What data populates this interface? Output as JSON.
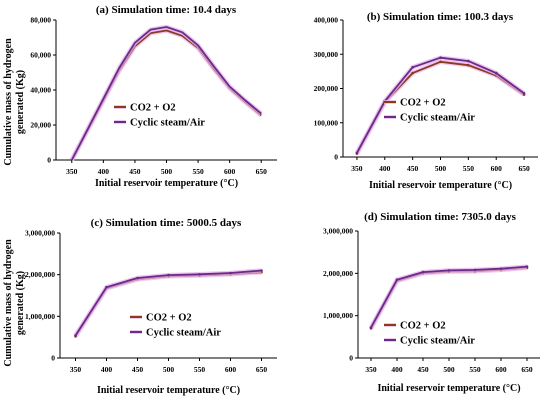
{
  "shared": {
    "ylabel_line1": "Cumulative mass of hydrogen",
    "ylabel_line2": "generated (Kg)"
  },
  "chart_data": [
    {
      "type": "line",
      "title": "(a) Simulation time: 10.4 days",
      "xlabel": "Initial reservoir temperature (°C)",
      "x": [
        350,
        375,
        400,
        425,
        450,
        475,
        500,
        525,
        550,
        575,
        600,
        625,
        650
      ],
      "xticks": [
        350,
        400,
        450,
        500,
        550,
        600,
        650
      ],
      "xlim": [
        325,
        675
      ],
      "ylim": [
        0,
        80000
      ],
      "yticks": [
        0,
        20000,
        40000,
        60000,
        80000
      ],
      "ytick_labels": [
        "0",
        "20,000",
        "40,000",
        "60,000",
        "80,000"
      ],
      "series": [
        {
          "name": "CO2 + O2",
          "color": "#8b3a1a",
          "values": [
            0,
            17000,
            34000,
            51000,
            65000,
            72500,
            74000,
            71000,
            64000,
            52000,
            41000,
            33000,
            25500
          ]
        },
        {
          "name": "Cyclic steam/Air",
          "color": "#6a2a8a",
          "values": [
            0,
            17500,
            35000,
            52500,
            67000,
            74500,
            76000,
            73000,
            65500,
            53500,
            42000,
            34000,
            26500
          ]
        }
      ],
      "legend_position": "bottom-center"
    },
    {
      "type": "line",
      "title": "(b) Simulation time: 100.3 days",
      "xlabel": "Initial reservoir temperature (°C)",
      "x": [
        350,
        400,
        450,
        500,
        550,
        600,
        650
      ],
      "xticks": [
        350,
        400,
        450,
        500,
        550,
        600,
        650
      ],
      "xlim": [
        325,
        675
      ],
      "ylim": [
        0,
        400000
      ],
      "yticks": [
        0,
        100000,
        200000,
        300000,
        400000
      ],
      "ytick_labels": [
        "0",
        "100,000",
        "200,000",
        "300,000",
        "400,000"
      ],
      "series": [
        {
          "name": "CO2 + O2",
          "color": "#8b3a1a",
          "values": [
            10000,
            160000,
            245000,
            278000,
            268000,
            238000,
            182000
          ]
        },
        {
          "name": "Cyclic steam/Air",
          "color": "#6a2a8a",
          "values": [
            12000,
            163000,
            262000,
            290000,
            280000,
            245000,
            186000
          ]
        }
      ],
      "legend_position": "center-left"
    },
    {
      "type": "line",
      "title": "(c) Simulation time: 5000.5 days",
      "xlabel": "Initial reservoir temperature (°C)",
      "x": [
        350,
        400,
        450,
        500,
        550,
        600,
        650
      ],
      "xticks": [
        350,
        400,
        450,
        500,
        550,
        600,
        650
      ],
      "xlim": [
        325,
        675
      ],
      "ylim": [
        0,
        3000000
      ],
      "yticks": [
        0,
        1000000,
        2000000,
        3000000
      ],
      "ytick_labels": [
        "0",
        "1,000,000",
        "2,000,000",
        "3,000,000"
      ],
      "series": [
        {
          "name": "CO2 + O2",
          "color": "#8b3a1a",
          "values": [
            520000,
            1670000,
            1890000,
            1960000,
            1980000,
            2010000,
            2060000
          ]
        },
        {
          "name": "Cyclic steam/Air",
          "color": "#6a2a8a",
          "values": [
            540000,
            1700000,
            1920000,
            1990000,
            2010000,
            2040000,
            2100000
          ]
        }
      ],
      "legend_position": "bottom-center"
    },
    {
      "type": "line",
      "title": "(d) Simulation time: 7305.0 days",
      "xlabel": "Initial reservoir temperature (°C)",
      "x": [
        350,
        400,
        450,
        500,
        550,
        600,
        650
      ],
      "xticks": [
        350,
        400,
        450,
        500,
        550,
        600,
        650
      ],
      "xlim": [
        325,
        675
      ],
      "ylim": [
        0,
        3000000
      ],
      "yticks": [
        0,
        1000000,
        2000000,
        3000000
      ],
      "ytick_labels": [
        "0",
        "1,000,000",
        "2,000,000",
        "3,000,000"
      ],
      "series": [
        {
          "name": "CO2 + O2",
          "color": "#8b3a1a",
          "values": [
            700000,
            1820000,
            2000000,
            2040000,
            2050000,
            2080000,
            2130000
          ]
        },
        {
          "name": "Cyclic steam/Air",
          "color": "#6a2a8a",
          "values": [
            720000,
            1850000,
            2030000,
            2070000,
            2080000,
            2110000,
            2160000
          ]
        }
      ],
      "legend_position": "bottom-center"
    }
  ]
}
